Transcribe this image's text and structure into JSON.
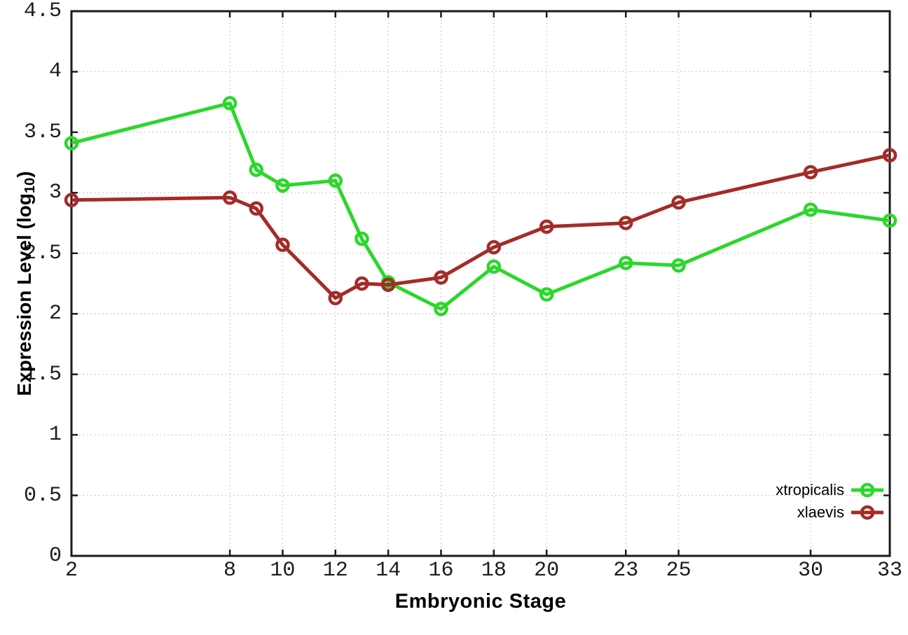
{
  "chart_data": {
    "type": "line",
    "xlabel": "Embryonic Stage",
    "ylabel": "Expression Level (log10)",
    "ylabel_parts": {
      "main": "Expression Level (log",
      "sub": "10",
      "close": ")"
    },
    "x": [
      2,
      8,
      9,
      10,
      12,
      13,
      14,
      16,
      18,
      20,
      23,
      25,
      30,
      33
    ],
    "xticks": [
      2,
      8,
      10,
      12,
      14,
      16,
      18,
      20,
      23,
      25,
      30,
      33
    ],
    "xtick_labels": [
      "2",
      "8",
      "10",
      "12",
      "14",
      "16",
      "18",
      "20",
      "23",
      "25",
      "30",
      "33"
    ],
    "yticks": [
      0,
      0.5,
      1,
      1.5,
      2,
      2.5,
      3,
      3.5,
      4,
      4.5
    ],
    "ytick_labels": [
      "0",
      "0.5",
      "1",
      "1.5",
      "2",
      "2.5",
      "3",
      "3.5",
      "4",
      "4.5"
    ],
    "xlim": [
      2,
      33
    ],
    "ylim": [
      0,
      4.5
    ],
    "grid": true,
    "legend_position": "inside-bottom-right",
    "series": [
      {
        "name": "xtropicalis",
        "color": "#2bd72b",
        "marker": "open-circle",
        "values": [
          3.41,
          3.74,
          3.19,
          3.06,
          3.1,
          2.62,
          2.26,
          2.04,
          2.39,
          2.16,
          2.42,
          2.4,
          2.86,
          2.77
        ]
      },
      {
        "name": "xlaevis",
        "color": "#a42b28",
        "marker": "open-circle",
        "values": [
          2.94,
          2.96,
          2.87,
          2.57,
          2.13,
          2.25,
          2.24,
          2.3,
          2.55,
          2.72,
          2.75,
          2.92,
          3.17,
          3.31
        ]
      }
    ],
    "axis_color": "#1a1a1a",
    "grid_color": "#b8b8b8",
    "background": "#ffffff"
  }
}
